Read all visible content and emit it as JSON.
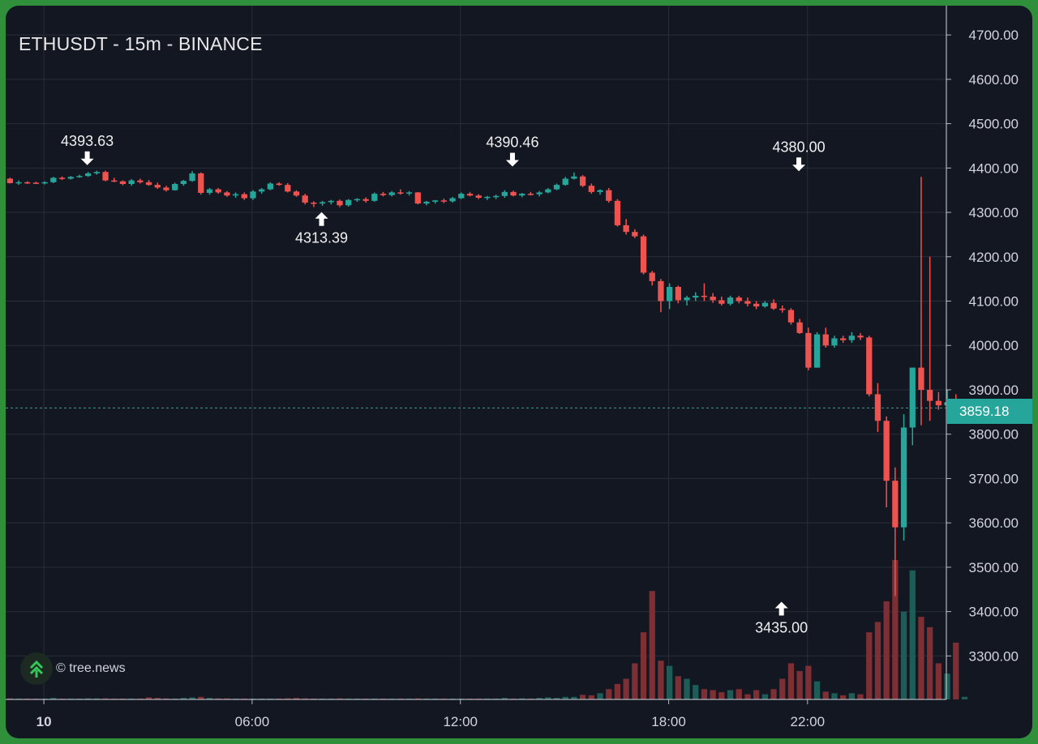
{
  "title": "ETHUSDT - 15m - BINANCE",
  "watermark": "© tree.news",
  "current_price_label": "3859.18",
  "colors": {
    "up": "#26a69a",
    "down": "#ef5350",
    "vol_up": "#1e5c58",
    "vol_down": "#7d2f33",
    "grid": "#2a2e39",
    "bg": "#131722",
    "text": "#d1d4dc"
  },
  "chart_data": {
    "type": "candlestick",
    "symbol": "ETHUSDT",
    "interval": "15m",
    "exchange": "BINANCE",
    "y_ticks": [
      3300,
      3400,
      3500,
      3600,
      3700,
      3800,
      3900,
      4000,
      4100,
      4200,
      4300,
      4400,
      4500,
      4600,
      4700
    ],
    "y_tick_labels": [
      "3300.00",
      "3400.00",
      "3500.00",
      "3600.00",
      "3700.00",
      "3800.00",
      "3900.00",
      "4000.00",
      "4100.00",
      "4200.00",
      "4300.00",
      "4400.00",
      "4500.00",
      "4600.00",
      "4700.00"
    ],
    "ylim": [
      3202,
      4766
    ],
    "x_ticks": [
      {
        "label": "10",
        "hour": 0,
        "bold": true
      },
      {
        "label": "06:00",
        "hour": 6,
        "bold": false
      },
      {
        "label": "12:00",
        "hour": 12,
        "bold": false
      },
      {
        "label": "18:00",
        "hour": 18,
        "bold": false
      },
      {
        "label": "22:00",
        "hour": 22,
        "bold": false
      }
    ],
    "x_range_hours": [
      -1.1,
      26.0
    ],
    "current_price": 3859.18,
    "annotations": [
      {
        "label": "4393.63",
        "hour": 1.25,
        "price": 4393.63,
        "type": "high"
      },
      {
        "label": "4313.39",
        "hour": 8.0,
        "price": 4313.39,
        "type": "low"
      },
      {
        "label": "4390.46",
        "hour": 13.5,
        "price": 4390.46,
        "type": "high"
      },
      {
        "label": "4380.00",
        "hour": 21.75,
        "price": 4380.0,
        "type": "high"
      },
      {
        "label": "3435.00",
        "hour": 21.25,
        "price": 3435.0,
        "type": "low"
      }
    ],
    "candles_ohlcv": [
      [
        4376,
        4378,
        4365,
        4366,
        2
      ],
      [
        4366,
        4372,
        4362,
        4368,
        1
      ],
      [
        4368,
        4370,
        4364,
        4367,
        1
      ],
      [
        4367,
        4369,
        4364,
        4366,
        1
      ],
      [
        4366,
        4370,
        4363,
        4368,
        1
      ],
      [
        4368,
        4380,
        4366,
        4378,
        3
      ],
      [
        4378,
        4381,
        4373,
        4376,
        1
      ],
      [
        4376,
        4382,
        4374,
        4380,
        1
      ],
      [
        4380,
        4385,
        4378,
        4382,
        1
      ],
      [
        4382,
        4391,
        4380,
        4388,
        2
      ],
      [
        4388,
        4394,
        4385,
        4391,
        2
      ],
      [
        4391,
        4394,
        4370,
        4372,
        2
      ],
      [
        4372,
        4378,
        4368,
        4370,
        1
      ],
      [
        4370,
        4372,
        4361,
        4364,
        1
      ],
      [
        4364,
        4375,
        4360,
        4372,
        1
      ],
      [
        4372,
        4376,
        4365,
        4368,
        1
      ],
      [
        4368,
        4373,
        4360,
        4362,
        4
      ],
      [
        4362,
        4367,
        4353,
        4356,
        3
      ],
      [
        4356,
        4360,
        4347,
        4350,
        2
      ],
      [
        4350,
        4367,
        4349,
        4364,
        1
      ],
      [
        4364,
        4373,
        4360,
        4371,
        3
      ],
      [
        4371,
        4393,
        4369,
        4388,
        4
      ],
      [
        4388,
        4390,
        4340,
        4344,
        5
      ],
      [
        4344,
        4355,
        4340,
        4352,
        3
      ],
      [
        4352,
        4355,
        4342,
        4345,
        2
      ],
      [
        4345,
        4348,
        4335,
        4338,
        2
      ],
      [
        4338,
        4345,
        4333,
        4341,
        1
      ],
      [
        4341,
        4345,
        4328,
        4332,
        1
      ],
      [
        4332,
        4350,
        4328,
        4347,
        1
      ],
      [
        4347,
        4355,
        4342,
        4352,
        1
      ],
      [
        4352,
        4368,
        4350,
        4365,
        1
      ],
      [
        4365,
        4368,
        4360,
        4362,
        1
      ],
      [
        4362,
        4366,
        4345,
        4347,
        2
      ],
      [
        4347,
        4350,
        4335,
        4338,
        3
      ],
      [
        4338,
        4342,
        4318,
        4322,
        2
      ],
      [
        4322,
        4325,
        4312,
        4320,
        1
      ],
      [
        4320,
        4326,
        4315,
        4323,
        1
      ],
      [
        4323,
        4328,
        4318,
        4326,
        1
      ],
      [
        4326,
        4329,
        4312,
        4316,
        2
      ],
      [
        4316,
        4330,
        4313,
        4328,
        1
      ],
      [
        4328,
        4332,
        4324,
        4330,
        1
      ],
      [
        4330,
        4334,
        4322,
        4326,
        1
      ],
      [
        4326,
        4345,
        4324,
        4342,
        1
      ],
      [
        4342,
        4346,
        4336,
        4339,
        1
      ],
      [
        4339,
        4348,
        4336,
        4345,
        1
      ],
      [
        4345,
        4352,
        4340,
        4344,
        1
      ],
      [
        4344,
        4348,
        4338,
        4345,
        1
      ],
      [
        4345,
        4346,
        4318,
        4320,
        2
      ],
      [
        4320,
        4326,
        4316,
        4324,
        1
      ],
      [
        4324,
        4328,
        4320,
        4327,
        1
      ],
      [
        4327,
        4331,
        4321,
        4325,
        1
      ],
      [
        4325,
        4335,
        4322,
        4332,
        1
      ],
      [
        4332,
        4345,
        4330,
        4342,
        1
      ],
      [
        4342,
        4346,
        4336,
        4338,
        1
      ],
      [
        4338,
        4341,
        4330,
        4333,
        1
      ],
      [
        4333,
        4337,
        4328,
        4335,
        1
      ],
      [
        4335,
        4340,
        4330,
        4337,
        1
      ],
      [
        4337,
        4350,
        4333,
        4346,
        3
      ],
      [
        4346,
        4349,
        4336,
        4338,
        1
      ],
      [
        4338,
        4344,
        4334,
        4342,
        2
      ],
      [
        4342,
        4346,
        4338,
        4341,
        1
      ],
      [
        4341,
        4348,
        4336,
        4345,
        3
      ],
      [
        4345,
        4355,
        4343,
        4352,
        4
      ],
      [
        4352,
        4365,
        4350,
        4362,
        3
      ],
      [
        4362,
        4380,
        4360,
        4376,
        5
      ],
      [
        4376,
        4390,
        4374,
        4381,
        5
      ],
      [
        4381,
        4384,
        4357,
        4360,
        9
      ],
      [
        4360,
        4365,
        4342,
        4346,
        8
      ],
      [
        4346,
        4352,
        4340,
        4350,
        12
      ],
      [
        4350,
        4355,
        4322,
        4326,
        20
      ],
      [
        4326,
        4330,
        4268,
        4271,
        30
      ],
      [
        4271,
        4285,
        4250,
        4256,
        40
      ],
      [
        4256,
        4262,
        4242,
        4246,
        70
      ],
      [
        4246,
        4250,
        4160,
        4164,
        130
      ],
      [
        4164,
        4168,
        4135,
        4145,
        210
      ],
      [
        4145,
        4150,
        4075,
        4100,
        75
      ],
      [
        4100,
        4140,
        4082,
        4132,
        65
      ],
      [
        4132,
        4135,
        4095,
        4102,
        45
      ],
      [
        4102,
        4112,
        4090,
        4108,
        40
      ],
      [
        4108,
        4120,
        4100,
        4112,
        28
      ],
      [
        4112,
        4140,
        4100,
        4110,
        20
      ],
      [
        4110,
        4118,
        4096,
        4102,
        18
      ],
      [
        4102,
        4110,
        4090,
        4094,
        14
      ],
      [
        4094,
        4112,
        4090,
        4108,
        18
      ],
      [
        4108,
        4112,
        4095,
        4100,
        20
      ],
      [
        4100,
        4108,
        4088,
        4094,
        10
      ],
      [
        4094,
        4100,
        4082,
        4088,
        18
      ],
      [
        4088,
        4100,
        4085,
        4096,
        10
      ],
      [
        4096,
        4104,
        4080,
        4083,
        20
      ],
      [
        4083,
        4090,
        4074,
        4080,
        40
      ],
      [
        4080,
        4084,
        4047,
        4052,
        70
      ],
      [
        4052,
        4060,
        4026,
        4028,
        55
      ],
      [
        4028,
        4040,
        3944,
        3950,
        65
      ],
      [
        3950,
        4030,
        3950,
        4025,
        35
      ],
      [
        4025,
        4040,
        3995,
        4000,
        15
      ],
      [
        4000,
        4022,
        3995,
        4016,
        12
      ],
      [
        4016,
        4022,
        4006,
        4012,
        8
      ],
      [
        4012,
        4030,
        4006,
        4022,
        12
      ],
      [
        4022,
        4028,
        4012,
        4018,
        10
      ],
      [
        4018,
        4022,
        3885,
        3890,
        130
      ],
      [
        3890,
        3915,
        3805,
        3830,
        150
      ],
      [
        3830,
        3840,
        3635,
        3695,
        190
      ],
      [
        3695,
        3725,
        3435,
        3590,
        270
      ],
      [
        3590,
        3845,
        3560,
        3815,
        170
      ],
      [
        3815,
        3950,
        3775,
        3950,
        250
      ],
      [
        3950,
        4380,
        3820,
        3900,
        160
      ],
      [
        3900,
        4200,
        3830,
        3875,
        140
      ],
      [
        3875,
        3895,
        3855,
        3865,
        70
      ],
      [
        3865,
        3900,
        3850,
        3872,
        50
      ],
      [
        3872,
        3890,
        3845,
        3850,
        110
      ],
      [
        3850,
        3870,
        3845,
        3859,
        5
      ]
    ]
  }
}
